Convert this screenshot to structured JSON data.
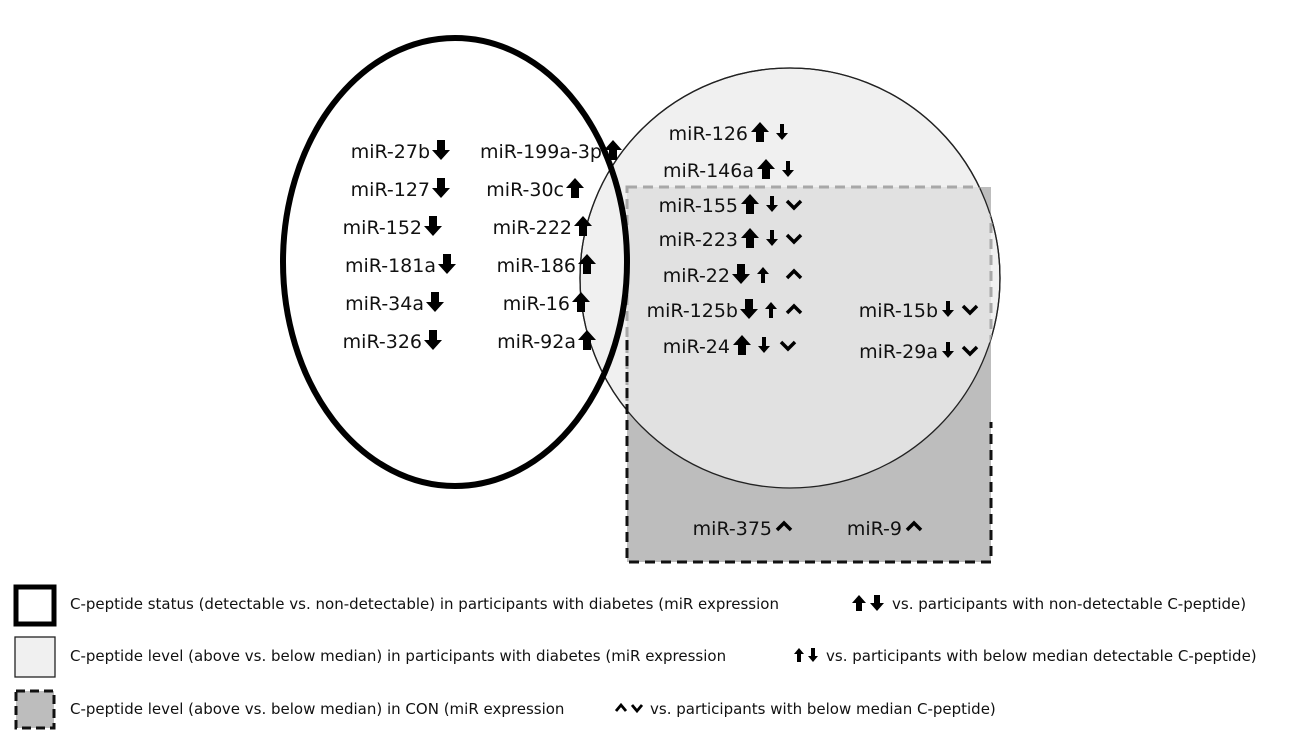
{
  "diagram": {
    "sets": [
      {
        "id": "cpep_status",
        "style": "thick-black-outline"
      },
      {
        "id": "cpep_level_diabetes",
        "style": "thin-outline-light-fill",
        "fill": "#f0f0f0"
      },
      {
        "id": "cpep_level_con",
        "style": "dashed-outline-gray-fill",
        "fill": "#bdbdbd"
      }
    ],
    "mirnas": {
      "status_only_down": [
        {
          "name": "miR-27b",
          "marks": [
            "thick-down"
          ]
        },
        {
          "name": "miR-127",
          "marks": [
            "thick-down"
          ]
        },
        {
          "name": "miR-152",
          "marks": [
            "thick-down"
          ]
        },
        {
          "name": "miR-181a",
          "marks": [
            "thick-down"
          ]
        },
        {
          "name": "miR-34a",
          "marks": [
            "thick-down"
          ]
        },
        {
          "name": "miR-326",
          "marks": [
            "thick-down"
          ]
        }
      ],
      "status_only_up": [
        {
          "name": "miR-199a-3p",
          "marks": [
            "thick-up"
          ]
        },
        {
          "name": "miR-30c",
          "marks": [
            "thick-up"
          ]
        },
        {
          "name": "miR-222",
          "marks": [
            "thick-up"
          ]
        },
        {
          "name": "miR-186",
          "marks": [
            "thick-up"
          ]
        },
        {
          "name": "miR-16",
          "marks": [
            "thick-up"
          ]
        },
        {
          "name": "miR-92a",
          "marks": [
            "thick-up"
          ]
        }
      ],
      "status_and_level": [
        {
          "name": "miR-126",
          "marks": [
            "thick-up",
            "thin-down"
          ]
        },
        {
          "name": "miR-146a",
          "marks": [
            "thick-up",
            "thin-down"
          ]
        }
      ],
      "all_three": [
        {
          "name": "miR-155",
          "marks": [
            "thick-up",
            "thin-down",
            "chevron-down"
          ]
        },
        {
          "name": "miR-223",
          "marks": [
            "thick-up",
            "thin-down",
            "chevron-down"
          ]
        },
        {
          "name": "miR-22",
          "marks": [
            "thick-down",
            "thin-up",
            "chevron-up"
          ]
        },
        {
          "name": "miR-125b",
          "marks": [
            "thick-down",
            "thin-up",
            "chevron-up"
          ]
        },
        {
          "name": "miR-24",
          "marks": [
            "thick-up",
            "thin-down",
            "chevron-down"
          ]
        }
      ],
      "level_and_con": [
        {
          "name": "miR-15b",
          "marks": [
            "thin-down",
            "chevron-down"
          ]
        },
        {
          "name": "miR-29a",
          "marks": [
            "thin-down",
            "chevron-down"
          ]
        }
      ],
      "con_only": [
        {
          "name": "miR-375",
          "marks": [
            "chevron-up"
          ]
        },
        {
          "name": "miR-9",
          "marks": [
            "chevron-up"
          ]
        }
      ]
    }
  },
  "legend": [
    {
      "box": "thick-black-outline",
      "text_before": "C-peptide status (detectable vs. non-detectable) in participants with diabetes (miR expression",
      "marks": [
        "thick-up",
        "thick-down"
      ],
      "text_after": "vs. participants with non-detectable C-peptide)"
    },
    {
      "box": "thin-outline-light-fill",
      "text_before": "C-peptide level (above vs. below median) in participants with diabetes (miR expression",
      "marks": [
        "thin-up",
        "thin-down"
      ],
      "text_after": "vs. participants with below median detectable C-peptide)"
    },
    {
      "box": "dashed-outline-gray-fill",
      "text_before": "C-peptide level (above vs. below median) in CON (miR expression",
      "marks": [
        "chevron-up",
        "chevron-down"
      ],
      "text_after": "vs. participants with below median C-peptide)"
    }
  ]
}
